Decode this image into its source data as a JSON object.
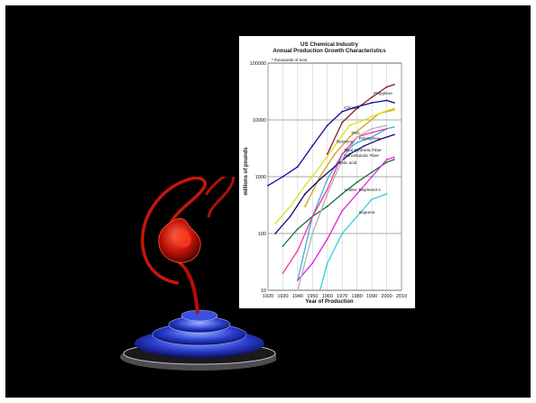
{
  "chart_data": {
    "type": "line",
    "title": "US Chemical Industry",
    "subtitle": "Annual Production Growth Characteristics",
    "note": "* thousands of tons",
    "xlabel": "Year of Production",
    "ylabel": "millions of pounds",
    "y_scale": "log",
    "xlim": [
      1920,
      2010
    ],
    "ylim": [
      10,
      100000
    ],
    "x_ticks": [
      "1920",
      "1930",
      "1940",
      "1950",
      "1960",
      "1970",
      "1980",
      "1990",
      "2000",
      "2010"
    ],
    "y_ticks": [
      "10",
      "100",
      "1000",
      "10000",
      "100000"
    ],
    "grid": true,
    "series": [
      {
        "name": "Propylene",
        "color": "#8b1a1a",
        "x": [
          1960,
          1970,
          1980,
          1990,
          2000,
          2005
        ],
        "y": [
          2500,
          9000,
          16000,
          25000,
          38000,
          42000
        ]
      },
      {
        "name": "PVC",
        "color": "#d4a017",
        "x": [
          1945,
          1955,
          1965,
          1975,
          1985,
          1995,
          2005
        ],
        "y": [
          300,
          1000,
          2500,
          5000,
          8000,
          13000,
          15000
        ]
      },
      {
        "name": "Chlorine",
        "color": "#0a0aa0",
        "x": [
          1920,
          1930,
          1940,
          1950,
          1960,
          1970,
          1980,
          1990,
          2000,
          2005
        ],
        "y": [
          700,
          1000,
          1500,
          3500,
          8000,
          14000,
          17000,
          20000,
          22000,
          20000
        ]
      },
      {
        "name": "Benzene",
        "color": "#e0e020",
        "x": [
          1925,
          1935,
          1945,
          1955,
          1965,
          1975,
          1985,
          1995,
          2005
        ],
        "y": [
          150,
          300,
          700,
          1500,
          3500,
          8000,
          10000,
          13000,
          16000
        ]
      },
      {
        "name": "Polystyrene",
        "color": "#3cb0e0",
        "x": [
          1940,
          1950,
          1960,
          1970,
          1980,
          1990,
          2000,
          2005
        ],
        "y": [
          15,
          200,
          900,
          2500,
          4000,
          5000,
          7000,
          7500
        ]
      },
      {
        "name": "Acetic acid",
        "color": "#0b0b6e",
        "x": [
          1925,
          1935,
          1945,
          1955,
          1965,
          1975,
          1985,
          1995,
          2005
        ],
        "y": [
          100,
          200,
          500,
          900,
          1500,
          2500,
          3500,
          4500,
          5500
        ]
      },
      {
        "name": "Aniline",
        "color": "#1a6e3a",
        "x": [
          1930,
          1940,
          1950,
          1960,
          1970,
          1980,
          1990,
          2000,
          2005
        ],
        "y": [
          60,
          120,
          200,
          300,
          500,
          800,
          1200,
          1800,
          2000
        ]
      },
      {
        "name": "Total Synthetic Fiber",
        "color": "#ff30a0",
        "x": [
          1930,
          1940,
          1950,
          1960,
          1970,
          1980,
          1990,
          2000
        ],
        "y": [
          20,
          50,
          200,
          600,
          2500,
          5000,
          6000,
          7000
        ]
      },
      {
        "name": "Bisphenol A",
        "color": "#e020e0",
        "x": [
          1940,
          1950,
          1960,
          1970,
          1980,
          1990,
          2000,
          2005
        ],
        "y": [
          15,
          30,
          80,
          250,
          500,
          1000,
          2000,
          2200
        ]
      },
      {
        "name": "Isoprene",
        "color": "#30d0e0",
        "x": [
          1955,
          1960,
          1970,
          1980,
          1990,
          2000
        ],
        "y": [
          10,
          30,
          100,
          200,
          400,
          500
        ]
      },
      {
        "name": "Nonceliulosic Fiber",
        "color": "#b0b0b0",
        "x": [
          1940,
          1950,
          1960,
          1970,
          1980,
          1990,
          2000
        ],
        "y": [
          10,
          100,
          500,
          2000,
          5000,
          7000,
          8000
        ]
      }
    ]
  }
}
